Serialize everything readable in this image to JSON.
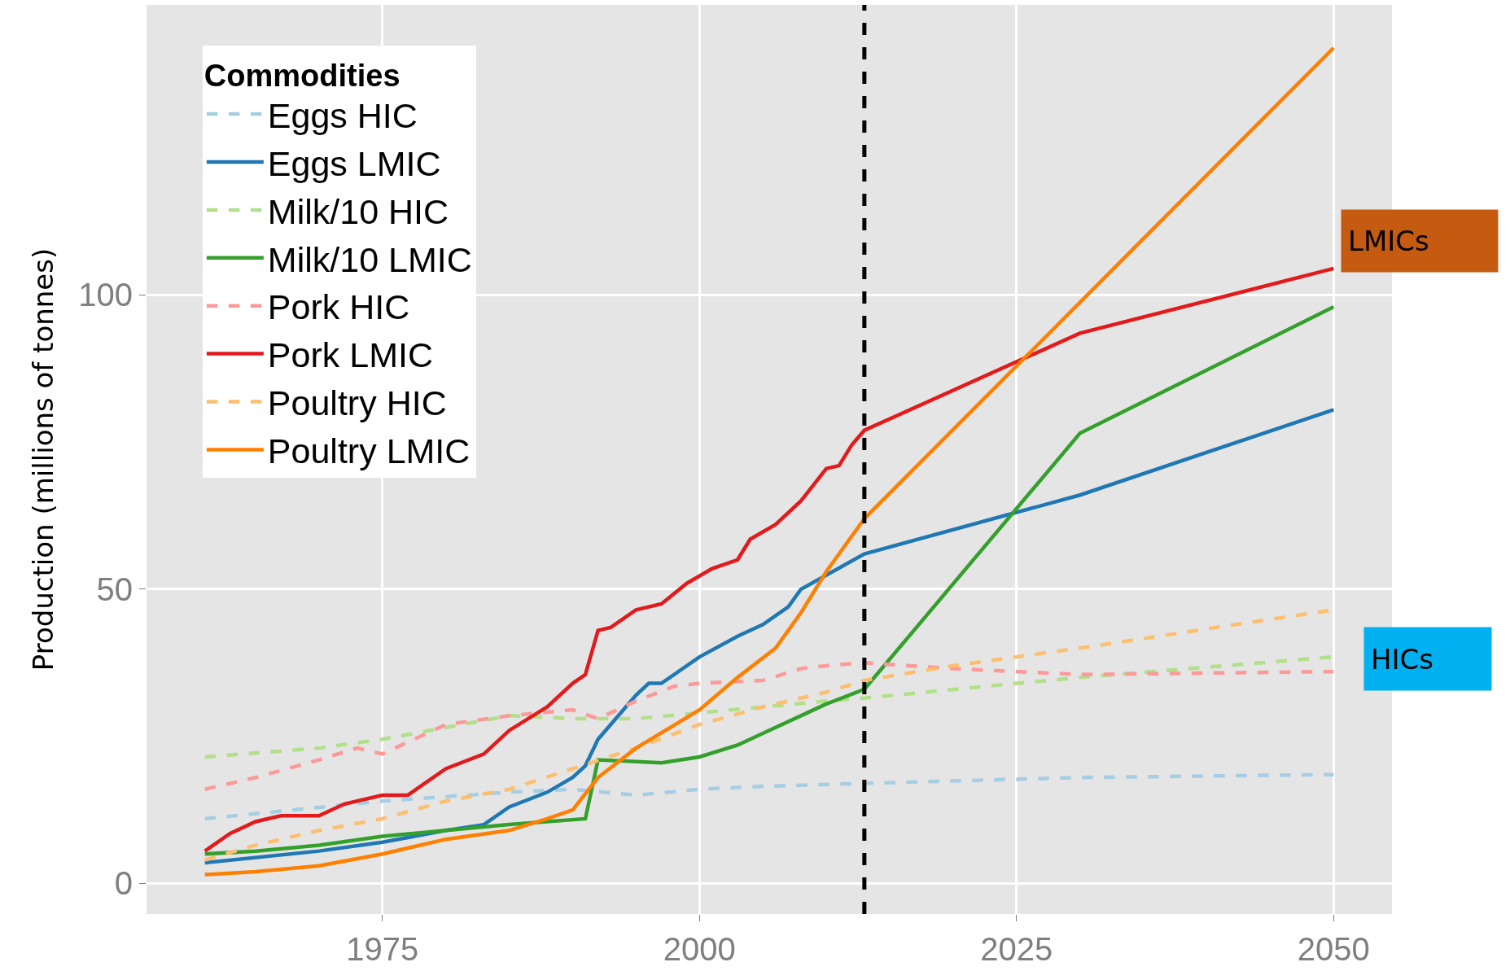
{
  "chart_data": {
    "type": "line",
    "ylabel": "Production (millions of tonnes)",
    "legend_title": "Commodities",
    "legend": "top left",
    "grid": true,
    "marker": "none",
    "xlim": [
      1956.4,
      2054.6
    ],
    "ylim": [
      -5.2,
      149.3
    ],
    "xticks": [
      1975,
      2000,
      2025,
      2050
    ],
    "yticks": [
      0,
      50,
      100
    ],
    "ref_lines": [
      {
        "axis": "x",
        "value": 2013,
        "color": "#000000",
        "line_style": "dashed"
      }
    ],
    "annotations": [
      "LMICs",
      "HICs"
    ],
    "series": [
      {
        "name": "Eggs HIC",
        "color": "#a6cee3",
        "line_style": "dashed",
        "x": [
          1961,
          1975,
          1985,
          1990,
          1995,
          2000,
          2005,
          2013,
          2030,
          2050
        ],
        "values": [
          11,
          14,
          15.5,
          16,
          15,
          16,
          16.5,
          17,
          18,
          18.5
        ]
      },
      {
        "name": "Eggs LMIC",
        "color": "#1f78b4",
        "line_style": "solid",
        "x": [
          1961,
          1970,
          1975,
          1980,
          1983,
          1985,
          1988,
          1990,
          1991,
          1992,
          1995,
          1996,
          1997,
          2000,
          2003,
          2005,
          2007,
          2008,
          2013,
          2030,
          2050
        ],
        "values": [
          3.5,
          5.5,
          7,
          9,
          10,
          13,
          15.5,
          18,
          20,
          24.5,
          32,
          34,
          34,
          38.5,
          42,
          44,
          47,
          50,
          56,
          66,
          80.5
        ]
      },
      {
        "name": "Milk/10 HIC",
        "color": "#b2df8a",
        "line_style": "dashed",
        "x": [
          1961,
          1970,
          1975,
          1980,
          1985,
          1990,
          1995,
          2000,
          2005,
          2010,
          2013,
          2025,
          2030,
          2050
        ],
        "values": [
          21.5,
          23,
          24.5,
          26.5,
          28.5,
          28,
          28,
          29,
          30,
          31,
          31.5,
          34,
          35,
          38.5
        ]
      },
      {
        "name": "Milk/10 LMIC",
        "color": "#33a02c",
        "line_style": "solid",
        "x": [
          1961,
          1965,
          1970,
          1975,
          1980,
          1985,
          1991,
          1992,
          1997,
          2000,
          2003,
          2005,
          2008,
          2010,
          2013,
          2030,
          2050
        ],
        "values": [
          5,
          5.5,
          6.5,
          8,
          9,
          10,
          11,
          21,
          20.5,
          21.5,
          23.5,
          25.5,
          28.5,
          30.5,
          33,
          76.5,
          98
        ]
      },
      {
        "name": "Pork HIC",
        "color": "#fb9a99",
        "line_style": "dashed",
        "x": [
          1961,
          1965,
          1970,
          1973,
          1975,
          1980,
          1985,
          1990,
          1992,
          1995,
          1998,
          2000,
          2005,
          2008,
          2010,
          2013,
          2020,
          2030,
          2050
        ],
        "values": [
          16,
          18,
          21,
          23,
          22,
          27,
          28.5,
          29.5,
          28,
          31,
          33.5,
          34,
          34.5,
          36.5,
          37,
          37.5,
          36.5,
          35.5,
          36
        ]
      },
      {
        "name": "Pork LMIC",
        "color": "#e31a1c",
        "line_style": "solid",
        "x": [
          1961,
          1963,
          1965,
          1967,
          1970,
          1972,
          1975,
          1977,
          1980,
          1983,
          1985,
          1988,
          1990,
          1991,
          1992,
          1993,
          1995,
          1997,
          1999,
          2001,
          2003,
          2004,
          2006,
          2008,
          2010,
          2011,
          2012,
          2013,
          2030,
          2050
        ],
        "values": [
          5.5,
          8.5,
          10.5,
          11.5,
          11.5,
          13.5,
          15,
          15,
          19.5,
          22,
          26,
          30,
          34,
          35.5,
          43,
          43.5,
          46.5,
          47.5,
          51,
          53.5,
          55,
          58.5,
          61,
          65,
          70.5,
          71,
          74.5,
          77,
          93.5,
          104.5
        ]
      },
      {
        "name": "Poultry HIC",
        "color": "#fdbf6f",
        "line_style": "dashed",
        "x": [
          1961,
          1965,
          1970,
          1975,
          1980,
          1985,
          1990,
          1995,
          2000,
          2005,
          2010,
          2013,
          2020,
          2030,
          2050
        ],
        "values": [
          4,
          6.5,
          9,
          11,
          14,
          16,
          19.5,
          23,
          27,
          30,
          32.5,
          34.5,
          37,
          40,
          46.5
        ]
      },
      {
        "name": "Poultry LMIC",
        "color": "#ff7f00",
        "line_style": "solid",
        "x": [
          1961,
          1965,
          1970,
          1975,
          1980,
          1985,
          1988,
          1990,
          1992,
          1995,
          2000,
          2003,
          2006,
          2008,
          2010,
          2013,
          2050
        ],
        "values": [
          1.5,
          2,
          3,
          5,
          7.5,
          9,
          11,
          12.5,
          18,
          23,
          29.5,
          35,
          40,
          46,
          53,
          62,
          142
        ]
      }
    ]
  }
}
